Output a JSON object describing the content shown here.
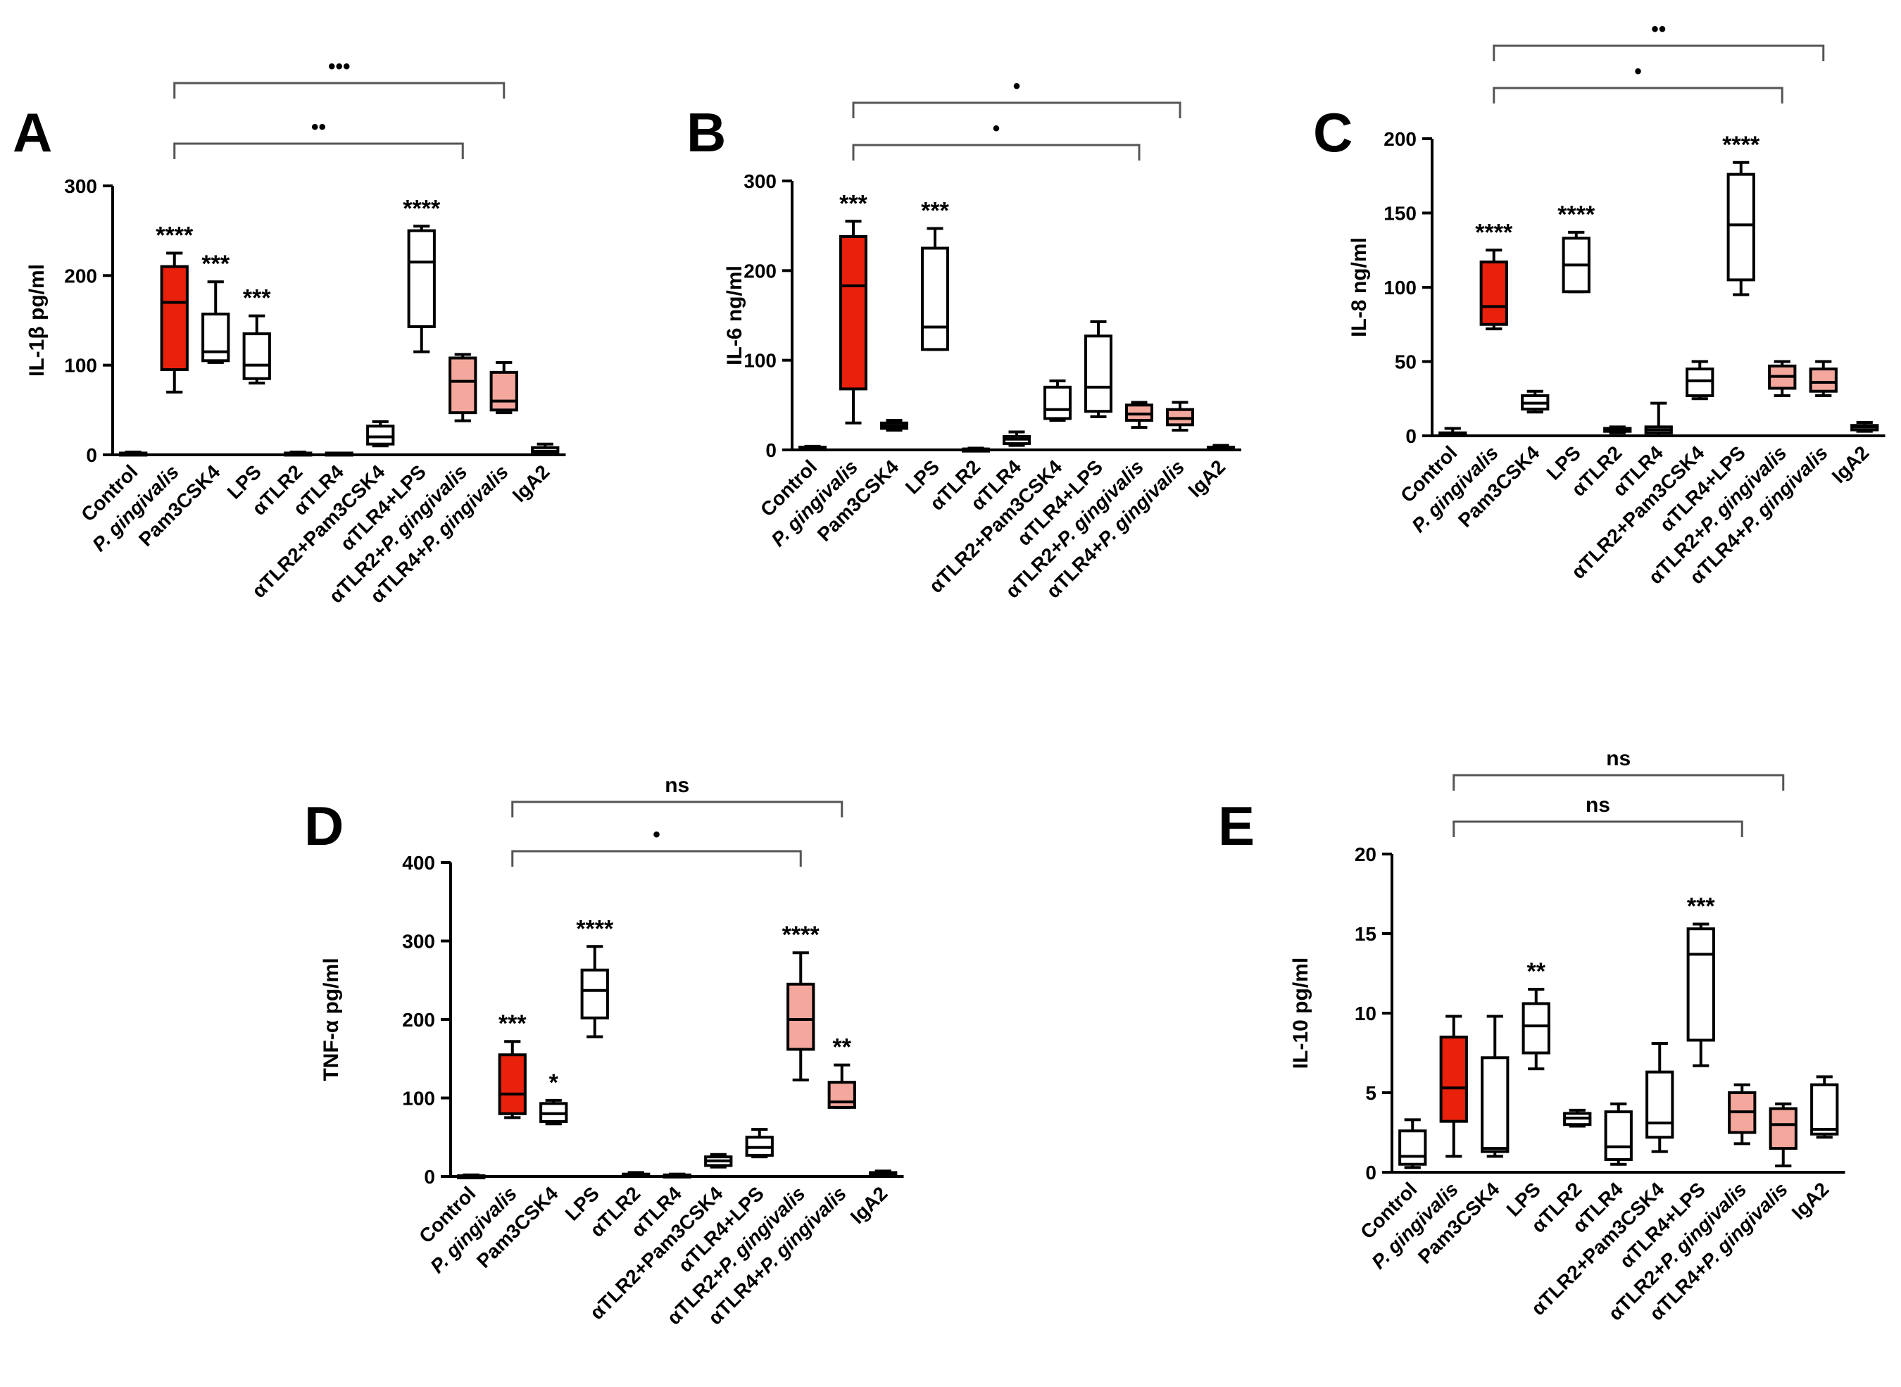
{
  "figure": {
    "categories": [
      "Control",
      "P. gingivalis",
      "Pam3CSK4",
      "LPS",
      "αTLR2",
      "αTLR4",
      "αTLR2+Pam3CSK4",
      "αTLR4+LPS",
      "αTLR2+P. gingivalis",
      "αTLR4+P. gingivalis",
      "IgA2"
    ],
    "italic_parts": {
      "P. gingivalis": "P. gingivalis",
      "αTLR2+P. gingivalis": "P. gingivalis",
      "αTLR4+P. gingivalis": "P. gingivalis"
    },
    "colors": {
      "strong": "#e8200c",
      "light": "#f4a79c",
      "white": "#ffffff",
      "line": "#000000",
      "bracket": "#555555"
    }
  },
  "chart_data": [
    {
      "panel": "A",
      "type": "box",
      "ylabel": "IL-1β pg/ml",
      "ylim": [
        0,
        300
      ],
      "yticks": [
        0,
        100,
        200,
        300
      ],
      "boxes": [
        {
          "category": "Control",
          "min": 0,
          "q1": 0,
          "median": 1,
          "q3": 2,
          "max": 3,
          "fill": "white",
          "sig": ""
        },
        {
          "category": "P. gingivalis",
          "min": 70,
          "q1": 95,
          "median": 170,
          "q3": 210,
          "max": 225,
          "fill": "strong",
          "sig": "****"
        },
        {
          "category": "Pam3CSK4",
          "min": 103,
          "q1": 105,
          "median": 115,
          "q3": 157,
          "max": 193,
          "fill": "white",
          "sig": "***"
        },
        {
          "category": "LPS",
          "min": 80,
          "q1": 85,
          "median": 100,
          "q3": 135,
          "max": 155,
          "fill": "white",
          "sig": "***"
        },
        {
          "category": "αTLR2",
          "min": 0,
          "q1": 0,
          "median": 1,
          "q3": 2,
          "max": 3,
          "fill": "white",
          "sig": ""
        },
        {
          "category": "αTLR4",
          "min": 0,
          "q1": 0,
          "median": 1,
          "q3": 2,
          "max": 2,
          "fill": "white",
          "sig": ""
        },
        {
          "category": "αTLR2+Pam3CSK4",
          "min": 10,
          "q1": 12,
          "median": 20,
          "q3": 32,
          "max": 37,
          "fill": "white",
          "sig": ""
        },
        {
          "category": "αTLR4+LPS",
          "min": 115,
          "q1": 143,
          "median": 215,
          "q3": 250,
          "max": 255,
          "fill": "white",
          "sig": "****"
        },
        {
          "category": "αTLR2+P. gingivalis",
          "min": 38,
          "q1": 47,
          "median": 82,
          "q3": 108,
          "max": 112,
          "fill": "light",
          "sig": ""
        },
        {
          "category": "αTLR4+P. gingivalis",
          "min": 47,
          "q1": 50,
          "median": 60,
          "q3": 92,
          "max": 103,
          "fill": "light",
          "sig": ""
        },
        {
          "category": "IgA2",
          "min": 0,
          "q1": 2,
          "median": 4,
          "q3": 8,
          "max": 12,
          "fill": "white",
          "sig": ""
        }
      ],
      "brackets": [
        {
          "from": "P. gingivalis",
          "to": "αTLR2+P. gingivalis",
          "label": "••"
        },
        {
          "from": "P. gingivalis",
          "to": "αTLR4+P. gingivalis",
          "label": "•••"
        }
      ]
    },
    {
      "panel": "B",
      "type": "box",
      "ylabel": "IL-6 ng/ml",
      "ylim": [
        0,
        300
      ],
      "yticks": [
        0,
        100,
        200,
        300
      ],
      "boxes": [
        {
          "category": "Control",
          "min": 0,
          "q1": 0,
          "median": 2,
          "q3": 3,
          "max": 4,
          "fill": "white",
          "sig": ""
        },
        {
          "category": "P. gingivalis",
          "min": 30,
          "q1": 68,
          "median": 183,
          "q3": 238,
          "max": 255,
          "fill": "strong",
          "sig": "***"
        },
        {
          "category": "Pam3CSK4",
          "min": 22,
          "q1": 24,
          "median": 27,
          "q3": 30,
          "max": 33,
          "fill": "white",
          "sig": ""
        },
        {
          "category": "LPS",
          "min": 112,
          "q1": 112,
          "median": 137,
          "q3": 225,
          "max": 247,
          "fill": "white",
          "sig": "***"
        },
        {
          "category": "αTLR2",
          "min": 0,
          "q1": 0,
          "median": 1,
          "q3": 1,
          "max": 2,
          "fill": "white",
          "sig": ""
        },
        {
          "category": "αTLR4",
          "min": 5,
          "q1": 7,
          "median": 12,
          "q3": 15,
          "max": 20,
          "fill": "white",
          "sig": ""
        },
        {
          "category": "αTLR2+Pam3CSK4",
          "min": 33,
          "q1": 35,
          "median": 45,
          "q3": 70,
          "max": 77,
          "fill": "white",
          "sig": ""
        },
        {
          "category": "αTLR4+LPS",
          "min": 37,
          "q1": 43,
          "median": 70,
          "q3": 127,
          "max": 143,
          "fill": "white",
          "sig": ""
        },
        {
          "category": "αTLR2+P. gingivalis",
          "min": 25,
          "q1": 33,
          "median": 40,
          "q3": 50,
          "max": 53,
          "fill": "light",
          "sig": ""
        },
        {
          "category": "αTLR4+P. gingivalis",
          "min": 22,
          "q1": 28,
          "median": 35,
          "q3": 45,
          "max": 53,
          "fill": "light",
          "sig": ""
        },
        {
          "category": "IgA2",
          "min": 0,
          "q1": 1,
          "median": 2,
          "q3": 3,
          "max": 5,
          "fill": "white",
          "sig": ""
        }
      ],
      "brackets": [
        {
          "from": "P. gingivalis",
          "to": "αTLR2+P. gingivalis",
          "label": "•"
        },
        {
          "from": "P. gingivalis",
          "to": "αTLR4+P. gingivalis",
          "label": "•"
        }
      ]
    },
    {
      "panel": "C",
      "type": "box",
      "ylabel": "IL-8 ng/ml",
      "ylim": [
        0,
        200
      ],
      "yticks": [
        0,
        50,
        100,
        150,
        200
      ],
      "boxes": [
        {
          "category": "Control",
          "min": 0,
          "q1": 0,
          "median": 1,
          "q3": 2,
          "max": 5,
          "fill": "white",
          "sig": ""
        },
        {
          "category": "P. gingivalis",
          "min": 72,
          "q1": 75,
          "median": 87,
          "q3": 117,
          "max": 125,
          "fill": "strong",
          "sig": "****"
        },
        {
          "category": "Pam3CSK4",
          "min": 16,
          "q1": 18,
          "median": 22,
          "q3": 27,
          "max": 30,
          "fill": "white",
          "sig": ""
        },
        {
          "category": "LPS",
          "min": 97,
          "q1": 97,
          "median": 115,
          "q3": 133,
          "max": 137,
          "fill": "white",
          "sig": "****"
        },
        {
          "category": "αTLR2",
          "min": 2,
          "q1": 3,
          "median": 4,
          "q3": 5,
          "max": 6,
          "fill": "white",
          "sig": ""
        },
        {
          "category": "αTLR4",
          "min": 0,
          "q1": 2,
          "median": 4,
          "q3": 6,
          "max": 22,
          "fill": "white",
          "sig": ""
        },
        {
          "category": "αTLR2+Pam3CSK4",
          "min": 25,
          "q1": 27,
          "median": 37,
          "q3": 45,
          "max": 50,
          "fill": "white",
          "sig": ""
        },
        {
          "category": "αTLR4+LPS",
          "min": 95,
          "q1": 105,
          "median": 142,
          "q3": 176,
          "max": 184,
          "fill": "white",
          "sig": "****"
        },
        {
          "category": "αTLR2+P. gingivalis",
          "min": 27,
          "q1": 32,
          "median": 40,
          "q3": 47,
          "max": 50,
          "fill": "light",
          "sig": ""
        },
        {
          "category": "αTLR4+P. gingivalis",
          "min": 27,
          "q1": 30,
          "median": 36,
          "q3": 45,
          "max": 50,
          "fill": "light",
          "sig": ""
        },
        {
          "category": "IgA2",
          "min": 3,
          "q1": 4,
          "median": 6,
          "q3": 7,
          "max": 9,
          "fill": "white",
          "sig": ""
        }
      ],
      "brackets": [
        {
          "from": "P. gingivalis",
          "to": "αTLR2+P. gingivalis",
          "label": "•"
        },
        {
          "from": "P. gingivalis",
          "to": "αTLR4+P. gingivalis",
          "label": "••"
        }
      ]
    },
    {
      "panel": "D",
      "type": "box",
      "ylabel": "TNF-α pg/ml",
      "ylim": [
        0,
        400
      ],
      "yticks": [
        0,
        100,
        200,
        300,
        400
      ],
      "boxes": [
        {
          "category": "Control",
          "min": 0,
          "q1": 0,
          "median": 1,
          "q3": 1,
          "max": 2,
          "fill": "white",
          "sig": ""
        },
        {
          "category": "P. gingivalis",
          "min": 75,
          "q1": 80,
          "median": 105,
          "q3": 155,
          "max": 172,
          "fill": "strong",
          "sig": "***"
        },
        {
          "category": "Pam3CSK4",
          "min": 67,
          "q1": 70,
          "median": 80,
          "q3": 93,
          "max": 97,
          "fill": "white",
          "sig": "*"
        },
        {
          "category": "LPS",
          "min": 178,
          "q1": 202,
          "median": 237,
          "q3": 263,
          "max": 293,
          "fill": "white",
          "sig": "****"
        },
        {
          "category": "αTLR2",
          "min": 0,
          "q1": 1,
          "median": 2,
          "q3": 3,
          "max": 5,
          "fill": "white",
          "sig": ""
        },
        {
          "category": "αTLR4",
          "min": 0,
          "q1": 0,
          "median": 1,
          "q3": 2,
          "max": 3,
          "fill": "white",
          "sig": ""
        },
        {
          "category": "αTLR2+Pam3CSK4",
          "min": 12,
          "q1": 14,
          "median": 20,
          "q3": 25,
          "max": 28,
          "fill": "white",
          "sig": ""
        },
        {
          "category": "αTLR4+LPS",
          "min": 25,
          "q1": 27,
          "median": 37,
          "q3": 50,
          "max": 60,
          "fill": "white",
          "sig": ""
        },
        {
          "category": "αTLR2+P. gingivalis",
          "min": 123,
          "q1": 162,
          "median": 200,
          "q3": 245,
          "max": 285,
          "fill": "light",
          "sig": "****"
        },
        {
          "category": "αTLR4+P. gingivalis",
          "min": 88,
          "q1": 88,
          "median": 95,
          "q3": 120,
          "max": 142,
          "fill": "light",
          "sig": "**"
        },
        {
          "category": "IgA2",
          "min": 2,
          "q1": 3,
          "median": 4,
          "q3": 5,
          "max": 7,
          "fill": "white",
          "sig": ""
        }
      ],
      "brackets": [
        {
          "from": "P. gingivalis",
          "to": "αTLR2+P. gingivalis",
          "label": "•"
        },
        {
          "from": "P. gingivalis",
          "to": "αTLR4+P. gingivalis",
          "label": "ns"
        }
      ]
    },
    {
      "panel": "E",
      "type": "box",
      "ylabel": "IL-10 pg/ml",
      "ylim": [
        0,
        20
      ],
      "yticks": [
        0,
        5,
        10,
        15,
        20
      ],
      "boxes": [
        {
          "category": "Control",
          "min": 0.3,
          "q1": 0.5,
          "median": 1.0,
          "q3": 2.6,
          "max": 3.3,
          "fill": "white",
          "sig": ""
        },
        {
          "category": "P. gingivalis",
          "min": 1.0,
          "q1": 3.2,
          "median": 5.3,
          "q3": 8.5,
          "max": 9.8,
          "fill": "strong",
          "sig": ""
        },
        {
          "category": "Pam3CSK4",
          "min": 1.0,
          "q1": 1.3,
          "median": 1.5,
          "q3": 7.2,
          "max": 9.8,
          "fill": "white",
          "sig": ""
        },
        {
          "category": "LPS",
          "min": 6.5,
          "q1": 7.5,
          "median": 9.2,
          "q3": 10.6,
          "max": 11.5,
          "fill": "white",
          "sig": "**"
        },
        {
          "category": "αTLR2",
          "min": 2.9,
          "q1": 3.0,
          "median": 3.4,
          "q3": 3.7,
          "max": 3.9,
          "fill": "white",
          "sig": ""
        },
        {
          "category": "αTLR4",
          "min": 0.5,
          "q1": 0.8,
          "median": 1.6,
          "q3": 3.8,
          "max": 4.3,
          "fill": "white",
          "sig": ""
        },
        {
          "category": "αTLR2+Pam3CSK4",
          "min": 1.3,
          "q1": 2.2,
          "median": 3.1,
          "q3": 6.3,
          "max": 8.1,
          "fill": "white",
          "sig": ""
        },
        {
          "category": "αTLR4+LPS",
          "min": 6.7,
          "q1": 8.3,
          "median": 13.7,
          "q3": 15.3,
          "max": 15.6,
          "fill": "white",
          "sig": "***"
        },
        {
          "category": "αTLR2+P. gingivalis",
          "min": 1.8,
          "q1": 2.5,
          "median": 3.8,
          "q3": 5.0,
          "max": 5.5,
          "fill": "light",
          "sig": ""
        },
        {
          "category": "αTLR4+P. gingivalis",
          "min": 0.4,
          "q1": 1.5,
          "median": 3.0,
          "q3": 4.0,
          "max": 4.3,
          "fill": "light",
          "sig": ""
        },
        {
          "category": "IgA2",
          "min": 2.2,
          "q1": 2.4,
          "median": 2.7,
          "q3": 5.5,
          "max": 6.0,
          "fill": "white",
          "sig": ""
        }
      ],
      "brackets": [
        {
          "from": "P. gingivalis",
          "to": "αTLR2+P. gingivalis",
          "label": "ns"
        },
        {
          "from": "P. gingivalis",
          "to": "αTLR4+P. gingivalis",
          "label": "ns"
        }
      ]
    }
  ]
}
